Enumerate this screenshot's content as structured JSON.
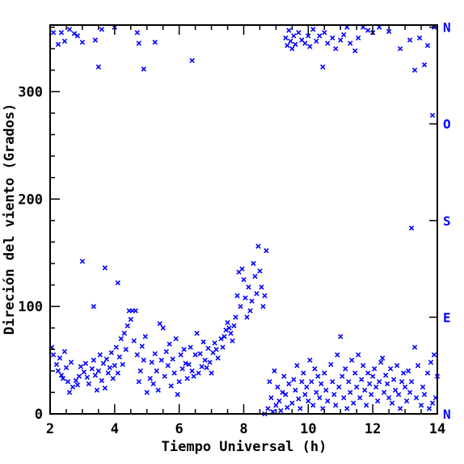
{
  "chart_data": {
    "type": "scatter",
    "title": "",
    "xlabel": "Tiempo Universal (h)",
    "ylabel": "Direción del viento (Grados)",
    "xlim": [
      2,
      14
    ],
    "ylim": [
      0,
      362
    ],
    "x_ticks": [
      2,
      4,
      6,
      8,
      10,
      12,
      14
    ],
    "y_ticks": [
      0,
      100,
      200,
      300
    ],
    "marker": "x",
    "marker_color": "#0000ff",
    "right_axis_labels": [
      {
        "label": "N",
        "value": 0
      },
      {
        "label": "E",
        "value": 90
      },
      {
        "label": "S",
        "value": 180
      },
      {
        "label": "O",
        "value": 270
      },
      {
        "label": "N",
        "value": 360
      }
    ],
    "series": [
      {
        "points": [
          [
            2.05,
            62
          ],
          [
            2.1,
            55
          ],
          [
            2.2,
            46
          ],
          [
            2.25,
            40
          ],
          [
            2.3,
            52
          ],
          [
            2.35,
            36
          ],
          [
            2.4,
            33
          ],
          [
            2.45,
            58
          ],
          [
            2.5,
            43
          ],
          [
            2.55,
            30
          ],
          [
            2.6,
            20
          ],
          [
            2.65,
            48
          ],
          [
            2.7,
            25
          ],
          [
            2.8,
            31
          ],
          [
            2.85,
            27
          ],
          [
            2.9,
            35
          ],
          [
            2.95,
            44
          ],
          [
            3.05,
            39
          ],
          [
            3.1,
            47
          ],
          [
            3.15,
            34
          ],
          [
            3.2,
            28
          ],
          [
            3.3,
            42
          ],
          [
            3.35,
            50
          ],
          [
            3.4,
            36
          ],
          [
            3.45,
            22
          ],
          [
            3.5,
            40
          ],
          [
            3.55,
            55
          ],
          [
            3.6,
            31
          ],
          [
            3.65,
            47
          ],
          [
            3.7,
            24
          ],
          [
            3.75,
            51
          ],
          [
            3.8,
            38
          ],
          [
            3.85,
            43
          ],
          [
            3.9,
            57
          ],
          [
            3.95,
            33
          ],
          [
            4.0,
            45
          ],
          [
            4.05,
            62
          ],
          [
            4.1,
            38
          ],
          [
            4.15,
            53
          ],
          [
            4.2,
            70
          ],
          [
            4.25,
            46
          ],
          [
            4.3,
            75
          ],
          [
            4.35,
            60
          ],
          [
            4.4,
            82
          ],
          [
            4.45,
            96
          ],
          [
            4.5,
            88
          ],
          [
            4.55,
            96
          ],
          [
            4.6,
            68
          ],
          [
            4.65,
            96
          ],
          [
            4.7,
            55
          ],
          [
            4.75,
            30
          ],
          [
            4.8,
            40
          ],
          [
            4.85,
            63
          ],
          [
            4.9,
            50
          ],
          [
            4.95,
            72
          ],
          [
            5.0,
            20
          ],
          [
            5.1,
            33
          ],
          [
            5.15,
            48
          ],
          [
            5.2,
            28
          ],
          [
            5.25,
            56
          ],
          [
            5.3,
            40
          ],
          [
            5.35,
            22
          ],
          [
            5.4,
            84
          ],
          [
            5.45,
            50
          ],
          [
            5.5,
            80
          ],
          [
            5.55,
            35
          ],
          [
            5.6,
            58
          ],
          [
            5.65,
            45
          ],
          [
            5.7,
            65
          ],
          [
            5.75,
            26
          ],
          [
            5.8,
            51
          ],
          [
            5.85,
            38
          ],
          [
            5.9,
            70
          ],
          [
            5.95,
            18
          ],
          [
            6.0,
            30
          ],
          [
            6.05,
            55
          ],
          [
            6.1,
            42
          ],
          [
            6.15,
            60
          ],
          [
            6.2,
            47
          ],
          [
            6.25,
            33
          ],
          [
            6.3,
            46
          ],
          [
            6.35,
            62
          ],
          [
            6.4,
            40
          ],
          [
            6.45,
            35
          ],
          [
            6.5,
            55
          ],
          [
            6.55,
            75
          ],
          [
            6.6,
            38
          ],
          [
            6.65,
            56
          ],
          [
            6.7,
            44
          ],
          [
            6.75,
            67
          ],
          [
            6.8,
            50
          ],
          [
            6.85,
            43
          ],
          [
            6.9,
            61
          ],
          [
            6.95,
            48
          ],
          [
            7.0,
            38
          ],
          [
            7.05,
            57
          ],
          [
            7.1,
            66
          ],
          [
            7.15,
            60
          ],
          [
            7.2,
            52
          ],
          [
            7.3,
            70
          ],
          [
            7.35,
            62
          ],
          [
            7.4,
            72
          ],
          [
            7.45,
            78
          ],
          [
            7.5,
            85
          ],
          [
            7.55,
            80
          ],
          [
            7.6,
            75
          ],
          [
            7.65,
            68
          ],
          [
            7.7,
            82
          ],
          [
            7.75,
            90
          ],
          [
            7.8,
            110
          ],
          [
            7.85,
            132
          ],
          [
            7.9,
            100
          ],
          [
            7.95,
            135
          ],
          [
            8.0,
            125
          ],
          [
            8.05,
            108
          ],
          [
            8.1,
            90
          ],
          [
            8.15,
            118
          ],
          [
            8.2,
            96
          ],
          [
            8.25,
            105
          ],
          [
            8.3,
            140
          ],
          [
            8.35,
            128
          ],
          [
            8.4,
            112
          ],
          [
            8.45,
            156
          ],
          [
            8.5,
            133
          ],
          [
            8.55,
            118
          ],
          [
            8.6,
            100
          ],
          [
            8.65,
            110
          ],
          [
            8.7,
            152
          ],
          [
            2.1,
            355
          ],
          [
            2.25,
            344
          ],
          [
            2.35,
            355
          ],
          [
            2.45,
            347
          ],
          [
            2.6,
            358
          ],
          [
            2.75,
            354
          ],
          [
            2.85,
            352
          ],
          [
            3.0,
            346
          ],
          [
            3.4,
            348
          ],
          [
            3.5,
            323
          ],
          [
            3.6,
            358
          ],
          [
            4.0,
            360
          ],
          [
            4.7,
            355
          ],
          [
            4.75,
            345
          ],
          [
            4.9,
            321
          ],
          [
            5.25,
            346
          ],
          [
            6.4,
            329
          ],
          [
            8.65,
            0
          ],
          [
            3.0,
            142
          ],
          [
            3.35,
            100
          ],
          [
            3.7,
            136
          ],
          [
            4.1,
            122
          ],
          [
            8.75,
            5
          ],
          [
            8.8,
            30
          ],
          [
            8.85,
            15
          ],
          [
            8.9,
            2
          ],
          [
            8.95,
            40
          ],
          [
            9.0,
            8
          ],
          [
            9.05,
            25
          ],
          [
            9.1,
            12
          ],
          [
            9.15,
            3
          ],
          [
            9.2,
            20
          ],
          [
            9.25,
            35
          ],
          [
            9.3,
            18
          ],
          [
            9.35,
            6
          ],
          [
            9.4,
            28
          ],
          [
            9.5,
            10
          ],
          [
            9.55,
            32
          ],
          [
            9.6,
            22
          ],
          [
            9.65,
            45
          ],
          [
            9.7,
            14
          ],
          [
            9.75,
            5
          ],
          [
            9.8,
            30
          ],
          [
            9.85,
            38
          ],
          [
            9.9,
            18
          ],
          [
            9.95,
            25
          ],
          [
            10.0,
            12
          ],
          [
            10.05,
            50
          ],
          [
            10.1,
            30
          ],
          [
            10.15,
            8
          ],
          [
            10.2,
            42
          ],
          [
            10.25,
            20
          ],
          [
            10.3,
            35
          ],
          [
            10.35,
            15
          ],
          [
            10.4,
            28
          ],
          [
            10.45,
            5
          ],
          [
            10.5,
            38
          ],
          [
            10.55,
            22
          ],
          [
            10.6,
            12
          ],
          [
            10.7,
            46
          ],
          [
            10.75,
            30
          ],
          [
            10.8,
            18
          ],
          [
            10.85,
            8
          ],
          [
            10.9,
            55
          ],
          [
            10.95,
            25
          ],
          [
            11.0,
            72
          ],
          [
            11.05,
            35
          ],
          [
            11.1,
            15
          ],
          [
            11.15,
            42
          ],
          [
            11.2,
            5
          ],
          [
            11.25,
            30
          ],
          [
            11.3,
            20
          ],
          [
            11.35,
            50
          ],
          [
            11.4,
            10
          ],
          [
            11.45,
            38
          ],
          [
            11.5,
            25
          ],
          [
            11.55,
            55
          ],
          [
            11.6,
            15
          ],
          [
            11.65,
            32
          ],
          [
            11.7,
            45
          ],
          [
            11.75,
            22
          ],
          [
            11.8,
            8
          ],
          [
            11.85,
            38
          ],
          [
            11.9,
            28
          ],
          [
            11.95,
            18
          ],
          [
            12.0,
            35
          ],
          [
            12.05,
            42
          ],
          [
            12.1,
            25
          ],
          [
            12.15,
            12
          ],
          [
            12.2,
            30
          ],
          [
            12.25,
            48
          ],
          [
            12.3,
            52
          ],
          [
            12.35,
            20
          ],
          [
            12.4,
            36
          ],
          [
            12.45,
            28
          ],
          [
            12.5,
            15
          ],
          [
            12.55,
            42
          ],
          [
            12.6,
            10
          ],
          [
            12.65,
            32
          ],
          [
            12.7,
            22
          ],
          [
            12.75,
            45
          ],
          [
            12.8,
            18
          ],
          [
            12.85,
            5
          ],
          [
            12.9,
            30
          ],
          [
            12.95,
            38
          ],
          [
            13.0,
            25
          ],
          [
            13.05,
            12
          ],
          [
            13.1,
            40
          ],
          [
            13.15,
            20
          ],
          [
            13.2,
            30
          ],
          [
            13.3,
            62
          ],
          [
            13.35,
            15
          ],
          [
            13.4,
            45
          ],
          [
            13.5,
            8
          ],
          [
            13.55,
            25
          ],
          [
            13.6,
            18
          ],
          [
            13.7,
            38
          ],
          [
            13.75,
            5
          ],
          [
            13.8,
            48
          ],
          [
            13.85,
            10
          ],
          [
            13.9,
            55
          ],
          [
            13.95,
            15
          ],
          [
            14.0,
            35
          ],
          [
            9.3,
            350
          ],
          [
            9.35,
            343
          ],
          [
            9.4,
            357
          ],
          [
            9.45,
            347
          ],
          [
            9.5,
            340
          ],
          [
            9.55,
            352
          ],
          [
            9.6,
            344
          ],
          [
            9.7,
            355
          ],
          [
            9.8,
            348
          ],
          [
            9.9,
            345
          ],
          [
            10.0,
            352
          ],
          [
            10.05,
            342
          ],
          [
            10.15,
            358
          ],
          [
            10.25,
            347
          ],
          [
            10.35,
            352
          ],
          [
            10.45,
            323
          ],
          [
            10.5,
            355
          ],
          [
            10.6,
            345
          ],
          [
            10.75,
            350
          ],
          [
            10.85,
            340
          ],
          [
            11.0,
            348
          ],
          [
            11.1,
            353
          ],
          [
            11.2,
            360
          ],
          [
            11.3,
            345
          ],
          [
            11.45,
            338
          ],
          [
            11.55,
            350
          ],
          [
            11.7,
            360
          ],
          [
            11.85,
            357
          ],
          [
            12.0,
            355
          ],
          [
            12.2,
            360
          ],
          [
            12.5,
            356
          ],
          [
            12.85,
            340
          ],
          [
            13.15,
            348
          ],
          [
            13.2,
            173
          ],
          [
            13.3,
            320
          ],
          [
            13.45,
            350
          ],
          [
            13.6,
            325
          ],
          [
            13.7,
            343
          ],
          [
            13.85,
            278
          ],
          [
            13.9,
            360
          ]
        ]
      }
    ]
  }
}
